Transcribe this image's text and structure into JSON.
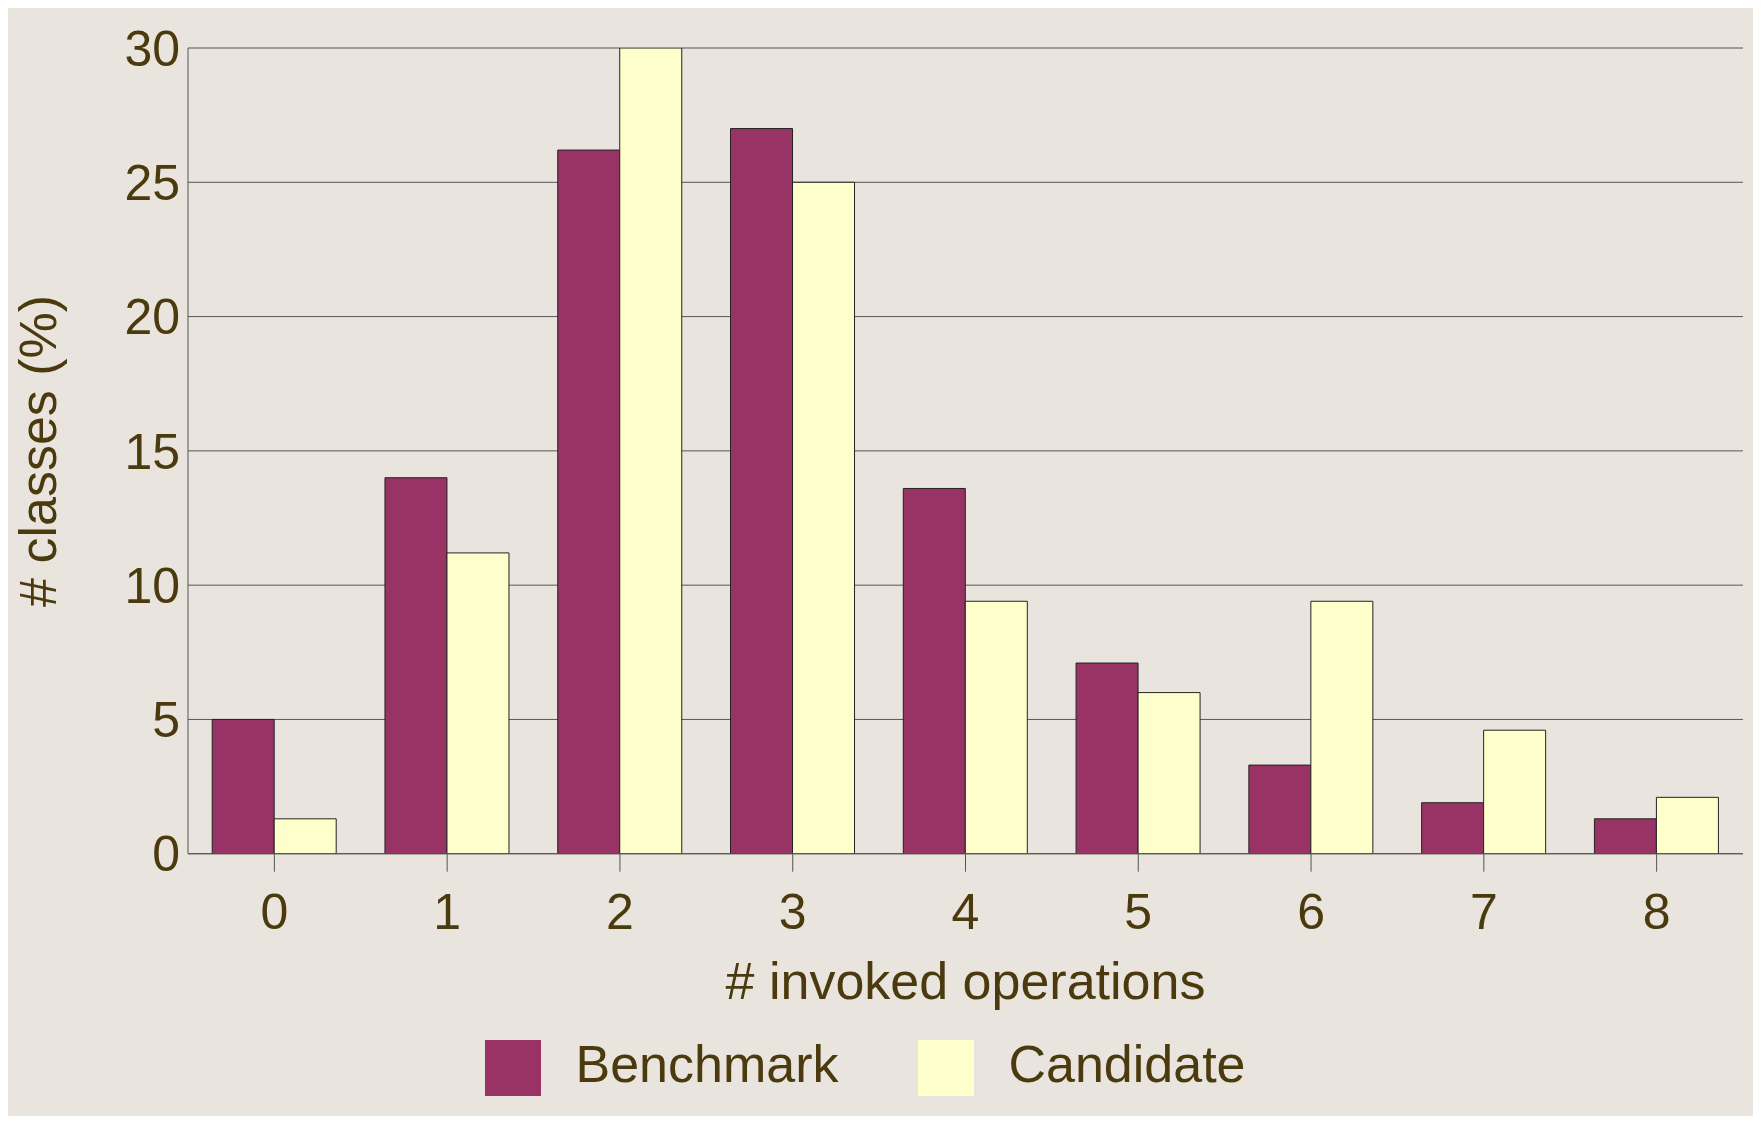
{
  "chart_data": {
    "type": "bar",
    "xlabel": "# invoked operations",
    "ylabel": "# classes (%)",
    "categories": [
      "0",
      "1",
      "2",
      "3",
      "4",
      "5",
      "6",
      "7",
      "8"
    ],
    "series": [
      {
        "name": "Benchmark",
        "color": "#993366",
        "values": [
          5.0,
          14.0,
          26.2,
          27.0,
          13.6,
          7.1,
          3.3,
          1.9,
          1.3
        ]
      },
      {
        "name": "Candidate",
        "color": "#ffffcc",
        "values": [
          1.3,
          11.2,
          30.0,
          25.0,
          9.4,
          6.0,
          9.4,
          4.6,
          2.1
        ]
      }
    ],
    "ylim": [
      0,
      30
    ],
    "yticks": [
      0,
      5,
      10,
      15,
      20,
      25,
      30
    ],
    "grid": "y",
    "legend": "bottom"
  }
}
